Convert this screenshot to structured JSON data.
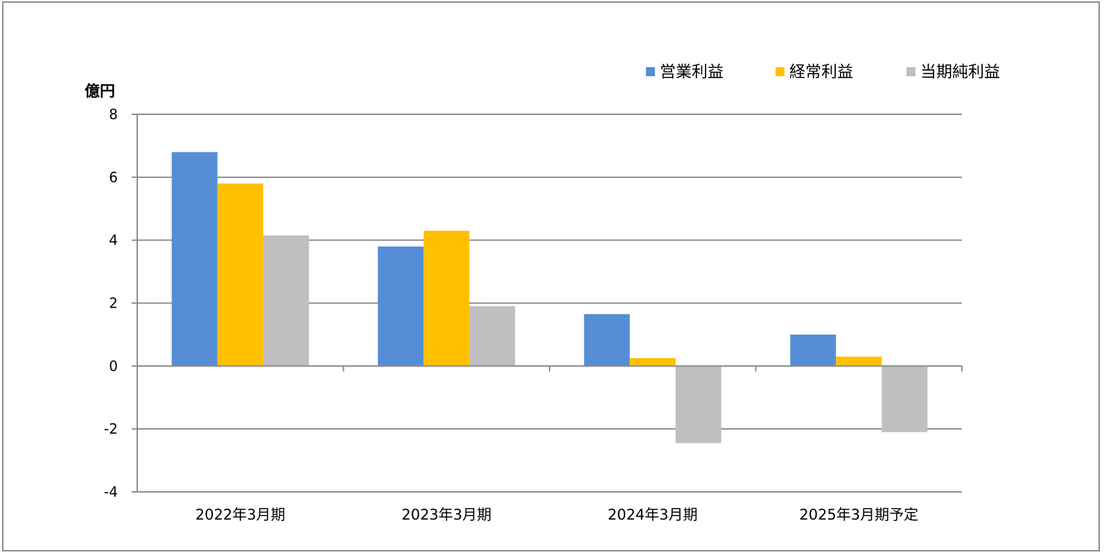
{
  "chart_data": {
    "type": "bar",
    "ylabel": "億円",
    "ylim": [
      -4,
      8
    ],
    "yticks": [
      8,
      6,
      4,
      2,
      0,
      -2,
      -4
    ],
    "grid": true,
    "legend_position": "top-right",
    "categories": [
      "2022年3月期",
      "2023年3月期",
      "2024年3月期",
      "2025年3月期予定"
    ],
    "series": [
      {
        "name": "営業利益",
        "color": "#558ED5",
        "values": [
          6.8,
          3.8,
          1.65,
          1.0
        ]
      },
      {
        "name": "経常利益",
        "color": "#FFC000",
        "values": [
          5.8,
          4.3,
          0.25,
          0.3
        ]
      },
      {
        "name": "当期純利益",
        "color": "#BFBFBF",
        "values": [
          4.15,
          1.9,
          -2.45,
          -2.1
        ]
      }
    ],
    "negative_tick_color": "#FF0000"
  }
}
